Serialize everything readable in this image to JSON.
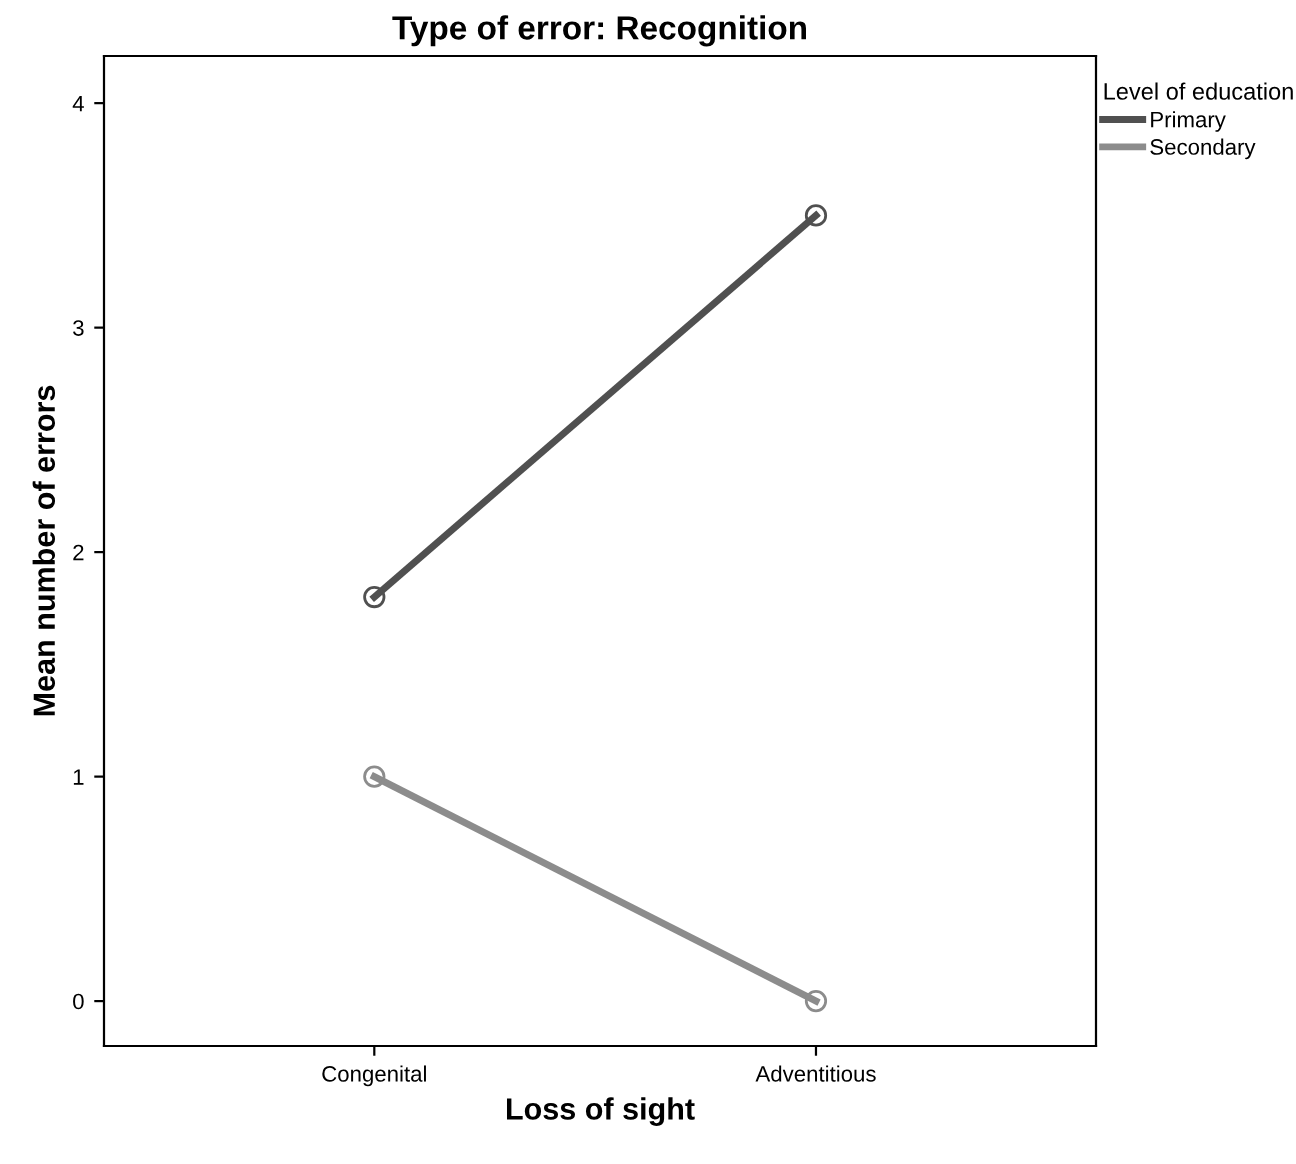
{
  "chart_data": {
    "type": "line",
    "title": "Type of error: Recognition",
    "xlabel": "Loss of sight",
    "ylabel": "Mean number of errors",
    "legend_title": "Level of education",
    "categories": [
      "Congenital",
      "Adventitious"
    ],
    "series": [
      {
        "name": "Primary",
        "color": "#505050",
        "values": [
          1.8,
          3.5
        ]
      },
      {
        "name": "Secondary",
        "color": "#8c8c8c",
        "values": [
          1.0,
          0.0
        ]
      }
    ],
    "ylim": [
      -0.2,
      4.21
    ],
    "yticks": [
      0,
      1,
      2,
      3,
      4
    ],
    "grid": false,
    "legend": "top right",
    "marker": "circle",
    "line_style": "solid"
  }
}
